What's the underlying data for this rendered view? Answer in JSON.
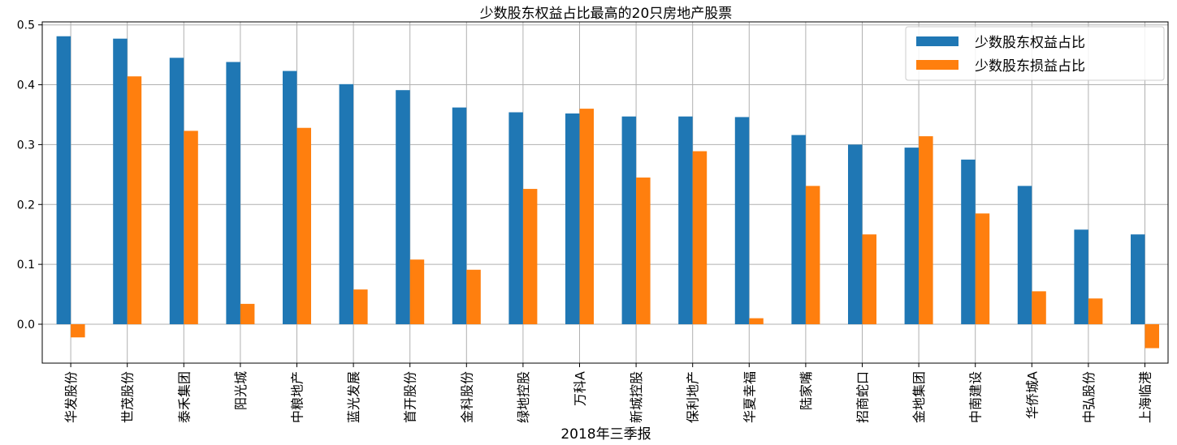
{
  "chart_data": {
    "type": "bar",
    "title": "少数股东权益占比最高的20只房地产股票",
    "xlabel": "2018年三季报",
    "ylabel": "",
    "ylim": [
      -0.065,
      0.505
    ],
    "yticks": [
      0.0,
      0.1,
      0.2,
      0.3,
      0.4,
      0.5
    ],
    "ytick_labels": [
      "0.0",
      "0.1",
      "0.2",
      "0.3",
      "0.4",
      "0.5"
    ],
    "grid": true,
    "legend_position": "top-right",
    "categories": [
      "华发股份",
      "世茂股份",
      "泰禾集团",
      "阳光城",
      "中粮地产",
      "蓝光发展",
      "首开股份",
      "金科股份",
      "绿地控股",
      "万科A",
      "新城控股",
      "保利地产",
      "华夏幸福",
      "陆家嘴",
      "招商蛇口",
      "金地集团",
      "中南建设",
      "华侨城A",
      "中弘股份",
      "上海临港"
    ],
    "series": [
      {
        "name": "少数股东权益占比",
        "color": "#1f77b4",
        "values": [
          0.481,
          0.477,
          0.445,
          0.438,
          0.423,
          0.401,
          0.391,
          0.362,
          0.354,
          0.352,
          0.347,
          0.347,
          0.346,
          0.316,
          0.3,
          0.295,
          0.275,
          0.231,
          0.158,
          0.15
        ]
      },
      {
        "name": "少数股东损益占比",
        "color": "#ff7f0e",
        "values": [
          -0.022,
          0.414,
          0.323,
          0.034,
          0.328,
          0.058,
          0.108,
          0.091,
          0.226,
          0.36,
          0.245,
          0.289,
          0.01,
          0.231,
          0.15,
          0.314,
          0.185,
          0.055,
          0.043,
          -0.04
        ]
      }
    ]
  }
}
